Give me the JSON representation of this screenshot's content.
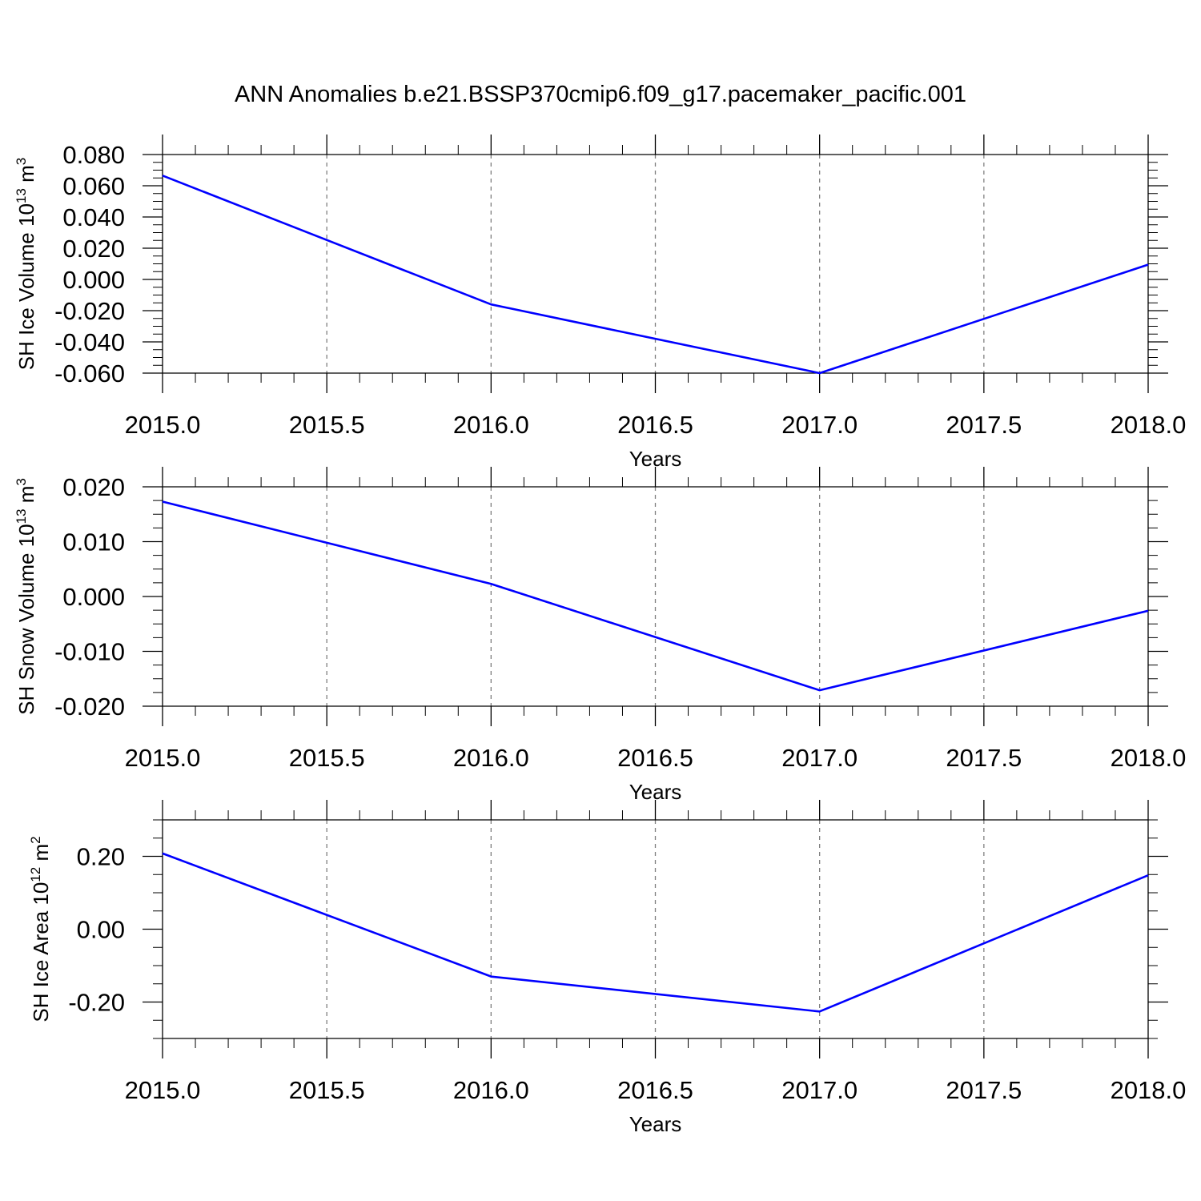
{
  "title": "ANN Anomalies b.e21.BSSP370cmip6.f09_g17.pacemaker_pacific.001",
  "line_color": "#0000ff",
  "grid_color": "#808080",
  "chart_data": [
    {
      "type": "line",
      "xlabel": "Years",
      "ylabel": {
        "text": "SH Ice Volume 10",
        "sup": "13",
        "unit": " m",
        "unit_sup": "3"
      },
      "xlim": [
        2015,
        2018
      ],
      "ylim": [
        -0.06,
        0.08
      ],
      "xticks": [
        2015.0,
        2015.5,
        2016.0,
        2016.5,
        2017.0,
        2017.5,
        2018.0
      ],
      "xtick_labels": [
        "2015.0",
        "2015.5",
        "2016.0",
        "2016.5",
        "2017.0",
        "2017.5",
        "2018.0"
      ],
      "yticks": [
        0.08,
        0.06,
        0.04,
        0.02,
        0.0,
        -0.02,
        -0.04,
        -0.06
      ],
      "ytick_labels": [
        "0.080",
        "0.060",
        "0.040",
        "0.020",
        "0.000",
        "-0.020",
        "-0.040",
        "-0.060"
      ],
      "grid": "x-dashed",
      "x": [
        2015,
        2016,
        2017,
        2018
      ],
      "y": [
        0.0665,
        -0.016,
        -0.06,
        0.0095
      ]
    },
    {
      "type": "line",
      "xlabel": "Years",
      "ylabel": {
        "text": "SH Snow Volume 10",
        "sup": "13",
        "unit": " m",
        "unit_sup": "3"
      },
      "xlim": [
        2015,
        2018
      ],
      "ylim": [
        -0.02,
        0.02
      ],
      "xticks": [
        2015.0,
        2015.5,
        2016.0,
        2016.5,
        2017.0,
        2017.5,
        2018.0
      ],
      "xtick_labels": [
        "2015.0",
        "2015.5",
        "2016.0",
        "2016.5",
        "2017.0",
        "2017.5",
        "2018.0"
      ],
      "yticks": [
        0.02,
        0.01,
        0.0,
        -0.01,
        -0.02
      ],
      "ytick_labels": [
        "0.020",
        "0.010",
        "0.000",
        "-0.010",
        "-0.020"
      ],
      "grid": "x-dashed",
      "x": [
        2015,
        2016,
        2017,
        2018
      ],
      "y": [
        0.0173,
        0.0023,
        -0.0171,
        -0.0026
      ]
    },
    {
      "type": "line",
      "xlabel": "Years",
      "ylabel": {
        "text": "SH Ice Area 10",
        "sup": "12",
        "unit": " m",
        "unit_sup": "2"
      },
      "xlim": [
        2015,
        2018
      ],
      "ylim": [
        -0.3,
        0.3
      ],
      "xticks": [
        2015.0,
        2015.5,
        2016.0,
        2016.5,
        2017.0,
        2017.5,
        2018.0
      ],
      "xtick_labels": [
        "2015.0",
        "2015.5",
        "2016.0",
        "2016.5",
        "2017.0",
        "2017.5",
        "2018.0"
      ],
      "yticks": [
        0.2,
        0.0,
        -0.2
      ],
      "ytick_labels": [
        "0.20",
        "0.00",
        "-0.20"
      ],
      "grid": "x-dashed",
      "x": [
        2015,
        2016,
        2017,
        2018
      ],
      "y": [
        0.208,
        -0.13,
        -0.226,
        0.148
      ]
    }
  ]
}
